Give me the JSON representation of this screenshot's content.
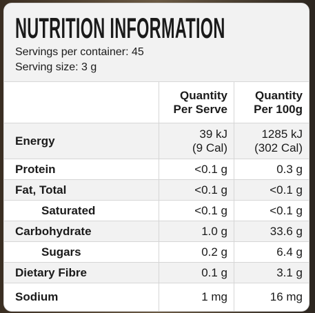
{
  "header": {
    "title": "NUTRITION INFORMATION",
    "servings_per_container": "Servings per container: 45",
    "serving_size": "Serving size: 3 g"
  },
  "table": {
    "columns": [
      "",
      "Quantity Per Serve",
      "Quantity Per 100g"
    ],
    "rows": [
      [
        "Energy",
        [
          "39 kJ",
          "(9 Cal)"
        ],
        [
          "1285 kJ",
          "(302 Cal)"
        ]
      ],
      [
        "Protein",
        "<0.1 g",
        "0.3 g"
      ],
      [
        "Fat, Total",
        "<0.1 g",
        "<0.1 g"
      ],
      [
        "Saturated",
        "<0.1 g",
        "<0.1 g"
      ],
      [
        "Carbohydrate",
        "1.0 g",
        "33.6 g"
      ],
      [
        "Sugars",
        "0.2 g",
        "6.4 g"
      ],
      [
        "Dietary Fibre",
        "0.1 g",
        "3.1 g"
      ],
      [
        "Sodium",
        "1 mg",
        "16 mg"
      ]
    ]
  }
}
